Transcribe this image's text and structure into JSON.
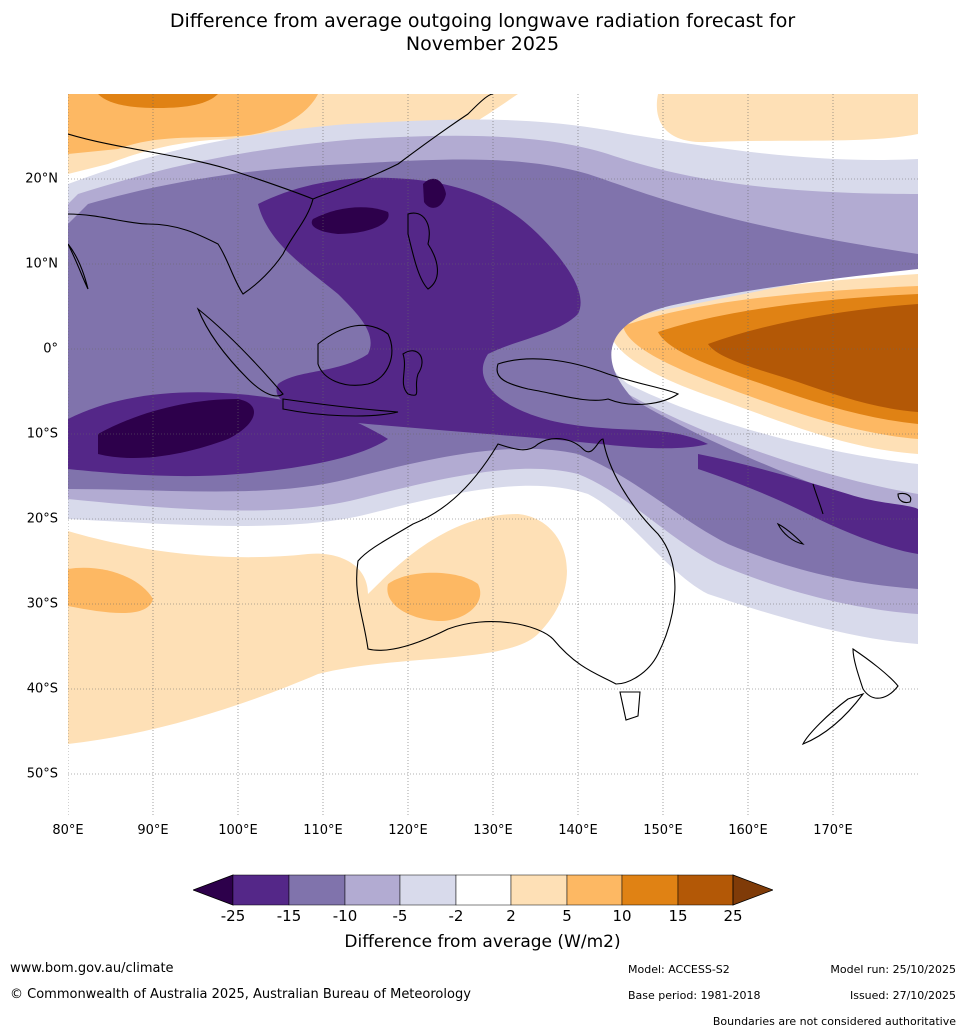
{
  "title_line1": "Difference from average outgoing longwave radiation forecast for",
  "title_line2": "November 2025",
  "map": {
    "lat_labels": [
      "20°N",
      "10°N",
      "0°",
      "10°S",
      "20°S",
      "30°S",
      "40°S",
      "50°S"
    ],
    "lon_labels": [
      "80°E",
      "90°E",
      "100°E",
      "110°E",
      "120°E",
      "130°E",
      "140°E",
      "150°E",
      "160°E",
      "170°E"
    ]
  },
  "colorbar": {
    "ticks": [
      "-25",
      "-15",
      "-10",
      "-5",
      "-2",
      "2",
      "5",
      "10",
      "15",
      "25"
    ],
    "colors": [
      "#2d004b",
      "#542788",
      "#8073ac",
      "#b2abd2",
      "#d8daeb",
      "#ffffff",
      "#fee0b6",
      "#fdb863",
      "#e08214",
      "#b35806",
      "#7f3b08"
    ],
    "label": "Difference from average (W/m2)"
  },
  "footer": {
    "website": "www.bom.gov.au/climate",
    "copyright": "© Commonwealth of Australia 2025, Australian Bureau of Meteorology",
    "model": "Model: ACCESS-S2",
    "base_period": "Base period: 1981-2018",
    "model_run": "Model run: 25/10/2025",
    "issued": "Issued: 27/10/2025",
    "disclaimer": "Boundaries are not considered authoritative"
  }
}
